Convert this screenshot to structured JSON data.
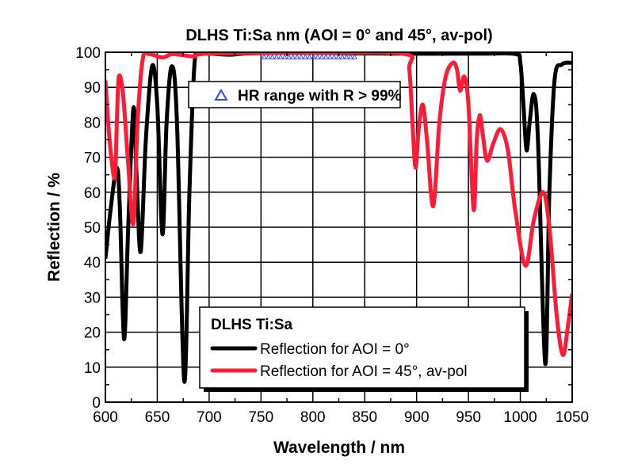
{
  "chart_data": {
    "type": "line",
    "title": "DLHS Ti:Sa nm (AOI = 0° and 45°, av-pol)",
    "xlabel": "Wavelength / nm",
    "ylabel": "Reflection / %",
    "xlim": [
      600,
      1050
    ],
    "ylim": [
      0,
      100
    ],
    "xticks": [
      600,
      650,
      700,
      750,
      800,
      850,
      900,
      950,
      1000,
      1050
    ],
    "yticks": [
      0,
      10,
      20,
      30,
      40,
      50,
      60,
      70,
      80,
      90,
      100
    ],
    "grid": true,
    "legend_title": "DLHS Ti:Sa",
    "legend_placement": "bottom-center",
    "series": [
      {
        "name": "Reflection for AOI = 0°",
        "color": "#000000",
        "points": [
          [
            600,
            41
          ],
          [
            605,
            55
          ],
          [
            611,
            67
          ],
          [
            614,
            55
          ],
          [
            618,
            18
          ],
          [
            622,
            50
          ],
          [
            627,
            84
          ],
          [
            630,
            65
          ],
          [
            634,
            43
          ],
          [
            639,
            75
          ],
          [
            645,
            96
          ],
          [
            650,
            85
          ],
          [
            655,
            48
          ],
          [
            659,
            80
          ],
          [
            664,
            96
          ],
          [
            669,
            80
          ],
          [
            676,
            6
          ],
          [
            681,
            60
          ],
          [
            686,
            97
          ],
          [
            692,
            99.5
          ],
          [
            700,
            99.6
          ],
          [
            720,
            99.3
          ],
          [
            740,
            99.7
          ],
          [
            800,
            99.8
          ],
          [
            880,
            99.6
          ],
          [
            960,
            99.6
          ],
          [
            995,
            99.5
          ],
          [
            1000,
            97
          ],
          [
            1003,
            85
          ],
          [
            1006,
            72
          ],
          [
            1009,
            80
          ],
          [
            1013,
            88
          ],
          [
            1017,
            75
          ],
          [
            1024,
            11
          ],
          [
            1028,
            60
          ],
          [
            1033,
            92
          ],
          [
            1040,
            96.5
          ],
          [
            1050,
            97
          ]
        ]
      },
      {
        "name": "Reflection for AOI = 45°, av-pol",
        "color": "#ff1a35",
        "points": [
          [
            600,
            92
          ],
          [
            604,
            75
          ],
          [
            609,
            64
          ],
          [
            611,
            80
          ],
          [
            613,
            93
          ],
          [
            617,
            88
          ],
          [
            622,
            68
          ],
          [
            627,
            51
          ],
          [
            631,
            80
          ],
          [
            636,
            98
          ],
          [
            642,
            99.5
          ],
          [
            655,
            98.5
          ],
          [
            665,
            99.5
          ],
          [
            685,
            98.8
          ],
          [
            700,
            99.6
          ],
          [
            800,
            99.8
          ],
          [
            888,
            99.5
          ],
          [
            893,
            95
          ],
          [
            896,
            80
          ],
          [
            899,
            67
          ],
          [
            902,
            78
          ],
          [
            906,
            85
          ],
          [
            910,
            75
          ],
          [
            916,
            56
          ],
          [
            922,
            80
          ],
          [
            928,
            93
          ],
          [
            935,
            97
          ],
          [
            939,
            95
          ],
          [
            942,
            89
          ],
          [
            946,
            93
          ],
          [
            950,
            85
          ],
          [
            955,
            55
          ],
          [
            958,
            75
          ],
          [
            961,
            82
          ],
          [
            964,
            76
          ],
          [
            968,
            69
          ],
          [
            974,
            74
          ],
          [
            981,
            78
          ],
          [
            988,
            72
          ],
          [
            995,
            55
          ],
          [
            1005,
            39
          ],
          [
            1013,
            52
          ],
          [
            1022,
            60
          ],
          [
            1028,
            50
          ],
          [
            1035,
            25
          ],
          [
            1041,
            13.5
          ],
          [
            1046,
            22
          ],
          [
            1050,
            31
          ]
        ]
      }
    ],
    "hr_range": {
      "label": "HR range with R > 99%",
      "color": "#3344ff",
      "from": 753,
      "to": 844,
      "level": 99.5
    }
  }
}
